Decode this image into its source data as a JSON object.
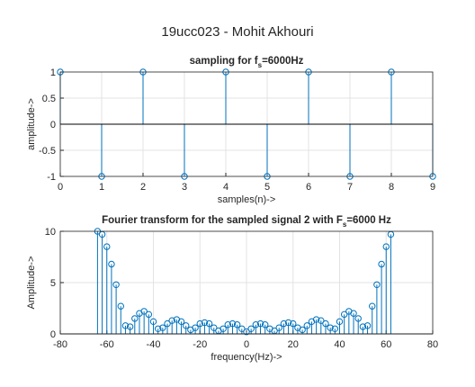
{
  "suptitle": "19ucc023 - Mohit Akhouri",
  "chart_data": [
    {
      "type": "stem",
      "title": [
        "sampling for f",
        "s",
        "=6000Hz"
      ],
      "xlabel": "samples(n)->",
      "ylabel": "amplitude->",
      "x": [
        0,
        1,
        2,
        3,
        4,
        5,
        6,
        7,
        8,
        9
      ],
      "values": [
        1,
        -1,
        1,
        -1,
        1,
        -1,
        1,
        -1,
        1,
        -1
      ],
      "color": "#0072bd",
      "xlim": [
        0,
        9
      ],
      "xticks": [
        0,
        1,
        2,
        3,
        4,
        5,
        6,
        7,
        8,
        9
      ],
      "ylim": [
        -1,
        1
      ],
      "yticks": [
        -1,
        -0.5,
        0,
        0.5,
        1
      ],
      "grid": true
    },
    {
      "type": "stem",
      "title": [
        "Fourier transform for the sampled signal 2 with F",
        "s",
        "=6000 Hz"
      ],
      "xlabel": "frequency(Hz)->",
      "ylabel": "Amplitude->",
      "x": [
        -64,
        -62,
        -60,
        -58,
        -56,
        -54,
        -52,
        -50,
        -48,
        -46,
        -44,
        -42,
        -40,
        -38,
        -36,
        -34,
        -32,
        -30,
        -28,
        -26,
        -24,
        -22,
        -20,
        -18,
        -16,
        -14,
        -12,
        -10,
        -8,
        -6,
        -4,
        -2,
        0,
        2,
        4,
        6,
        8,
        10,
        12,
        14,
        16,
        18,
        20,
        22,
        24,
        26,
        28,
        30,
        32,
        34,
        36,
        38,
        40,
        42,
        44,
        46,
        48,
        50,
        52,
        54,
        56,
        58,
        60,
        62
      ],
      "values": [
        10,
        9.7,
        8.5,
        6.8,
        4.8,
        2.7,
        0.8,
        0.7,
        1.5,
        2.0,
        2.2,
        1.9,
        1.2,
        0.5,
        0.6,
        1.0,
        1.3,
        1.4,
        1.2,
        0.8,
        0.4,
        0.6,
        1.0,
        1.1,
        1.0,
        0.6,
        0.3,
        0.5,
        0.9,
        1.0,
        0.9,
        0.5,
        0.2,
        0.5,
        0.9,
        1.0,
        0.9,
        0.5,
        0.3,
        0.6,
        1.0,
        1.1,
        1.0,
        0.6,
        0.4,
        0.8,
        1.2,
        1.4,
        1.3,
        1.0,
        0.6,
        0.5,
        1.2,
        1.9,
        2.2,
        2.0,
        1.5,
        0.7,
        0.8,
        2.7,
        4.8,
        6.8,
        8.5,
        9.7
      ],
      "color": "#0072bd",
      "xlim": [
        -80,
        80
      ],
      "xticks": [
        -80,
        -60,
        -40,
        -20,
        0,
        20,
        40,
        60,
        80
      ],
      "ylim": [
        0,
        10
      ],
      "yticks": [
        0,
        5,
        10
      ],
      "grid": true
    }
  ]
}
